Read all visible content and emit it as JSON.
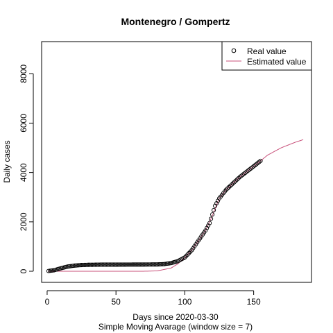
{
  "chart_data": {
    "type": "line",
    "title": "Montenegro / Gompertz",
    "xlabel": "Days since 2020-03-30",
    "subtitle": "Simple Moving Avarage (window size = 7)",
    "ylabel": "Daily cases",
    "xlim": [
      -4,
      192
    ],
    "ylim": [
      -450,
      9300
    ],
    "x_ticks": [
      0,
      50,
      100,
      150
    ],
    "y_ticks": [
      0,
      2000,
      4000,
      6000,
      8000
    ],
    "legend": {
      "position": "top-right",
      "entries": [
        {
          "label": "Real value",
          "marker": "circle",
          "color": "#000000"
        },
        {
          "label": "Estimated value",
          "marker": "line",
          "color": "#c8507a"
        }
      ]
    },
    "series": [
      {
        "name": "Real value",
        "style": "points",
        "x_range": [
          1,
          155
        ],
        "anchors": [
          [
            1,
            10
          ],
          [
            5,
            40
          ],
          [
            10,
            120
          ],
          [
            15,
            190
          ],
          [
            20,
            230
          ],
          [
            25,
            250
          ],
          [
            30,
            260
          ],
          [
            40,
            268
          ],
          [
            60,
            270
          ],
          [
            80,
            275
          ],
          [
            85,
            290
          ],
          [
            90,
            330
          ],
          [
            95,
            410
          ],
          [
            100,
            560
          ],
          [
            105,
            850
          ],
          [
            110,
            1250
          ],
          [
            115,
            1650
          ],
          [
            118,
            1950
          ],
          [
            120,
            2300
          ],
          [
            122,
            2650
          ],
          [
            125,
            2950
          ],
          [
            130,
            3300
          ],
          [
            140,
            3820
          ],
          [
            150,
            4250
          ],
          [
            155,
            4470
          ]
        ]
      },
      {
        "name": "Estimated value",
        "style": "line",
        "color": "#c8507a",
        "x_range": [
          1,
          186
        ],
        "anchors": [
          [
            1,
            0
          ],
          [
            70,
            0
          ],
          [
            80,
            15
          ],
          [
            90,
            130
          ],
          [
            95,
            300
          ],
          [
            100,
            560
          ],
          [
            105,
            850
          ],
          [
            110,
            1250
          ],
          [
            115,
            1650
          ],
          [
            120,
            2250
          ],
          [
            125,
            2950
          ],
          [
            130,
            3300
          ],
          [
            140,
            3820
          ],
          [
            150,
            4250
          ],
          [
            155,
            4470
          ],
          [
            160,
            4700
          ],
          [
            170,
            5000
          ],
          [
            180,
            5220
          ],
          [
            186,
            5330
          ]
        ]
      }
    ]
  }
}
